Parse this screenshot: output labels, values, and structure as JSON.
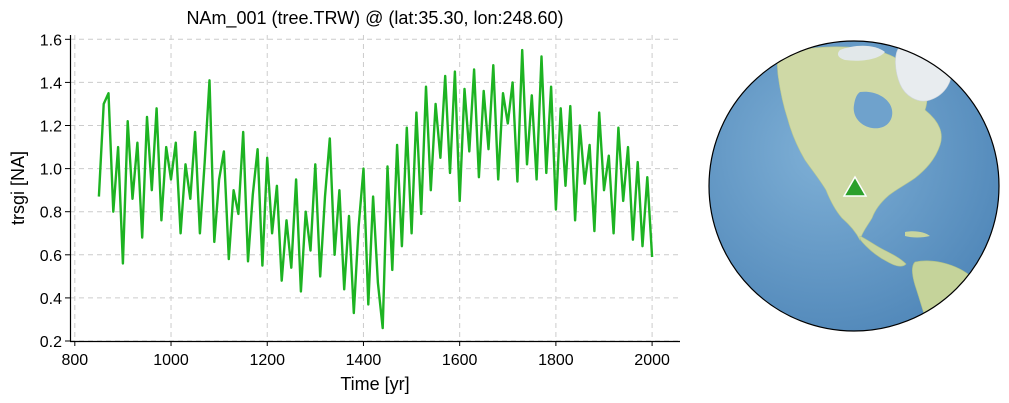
{
  "chart_data": {
    "type": "line",
    "title": "NAm_001 (tree.TRW) @ (lat:35.30, lon:248.60)",
    "xlabel": "Time [yr]",
    "ylabel": "trsgi [NA]",
    "xlim": [
      790,
      2058
    ],
    "ylim": [
      0.2,
      1.62
    ],
    "xticks": [
      800,
      1000,
      1200,
      1400,
      1600,
      1800,
      2000
    ],
    "xtick_labels": [
      "800",
      "1000",
      "1200",
      "1400",
      "1600",
      "1800",
      "2000"
    ],
    "yticks": [
      0.2,
      0.4,
      0.6,
      0.8,
      1.0,
      1.2,
      1.4,
      1.6
    ],
    "ytick_labels": [
      "0.2",
      "0.4",
      "0.6",
      "0.8",
      "1.0",
      "1.2",
      "1.4",
      "1.6"
    ],
    "grid": true,
    "series": [
      {
        "color": "#1db322",
        "x": [
          850,
          860,
          870,
          880,
          890,
          900,
          910,
          920,
          930,
          940,
          950,
          960,
          970,
          980,
          990,
          1000,
          1010,
          1020,
          1030,
          1040,
          1050,
          1060,
          1070,
          1080,
          1090,
          1100,
          1110,
          1120,
          1130,
          1140,
          1150,
          1160,
          1170,
          1180,
          1190,
          1200,
          1210,
          1220,
          1230,
          1240,
          1250,
          1260,
          1270,
          1280,
          1290,
          1300,
          1310,
          1320,
          1330,
          1340,
          1350,
          1360,
          1370,
          1380,
          1390,
          1400,
          1410,
          1420,
          1430,
          1440,
          1450,
          1460,
          1470,
          1480,
          1490,
          1500,
          1510,
          1520,
          1530,
          1540,
          1550,
          1560,
          1570,
          1580,
          1590,
          1600,
          1610,
          1620,
          1630,
          1640,
          1650,
          1660,
          1670,
          1680,
          1690,
          1700,
          1710,
          1720,
          1730,
          1740,
          1750,
          1760,
          1770,
          1780,
          1790,
          1800,
          1810,
          1820,
          1830,
          1840,
          1850,
          1860,
          1870,
          1880,
          1890,
          1900,
          1910,
          1920,
          1930,
          1940,
          1950,
          1960,
          1970,
          1980,
          1990,
          2000
        ],
        "y": [
          0.87,
          1.3,
          1.35,
          0.8,
          1.1,
          0.56,
          1.22,
          0.86,
          1.12,
          0.68,
          1.24,
          0.9,
          1.28,
          0.76,
          1.1,
          0.95,
          1.12,
          0.7,
          1.02,
          0.86,
          1.17,
          0.7,
          1.03,
          1.41,
          0.66,
          0.95,
          1.08,
          0.58,
          0.9,
          0.79,
          1.17,
          0.57,
          0.88,
          1.09,
          0.55,
          1.05,
          0.7,
          0.92,
          0.48,
          0.76,
          0.54,
          0.95,
          0.43,
          0.8,
          0.62,
          1.02,
          0.5,
          0.87,
          1.14,
          0.6,
          0.9,
          0.44,
          0.78,
          0.33,
          0.73,
          1.0,
          0.37,
          0.87,
          0.47,
          0.26,
          1.01,
          0.53,
          1.11,
          0.64,
          1.19,
          0.7,
          1.26,
          0.79,
          1.38,
          0.9,
          1.3,
          1.05,
          1.43,
          0.98,
          1.45,
          0.85,
          1.37,
          1.08,
          1.46,
          0.96,
          1.36,
          1.09,
          1.48,
          0.95,
          1.35,
          1.21,
          1.4,
          0.94,
          1.55,
          1.02,
          1.34,
          0.95,
          1.52,
          0.98,
          1.38,
          0.81,
          1.28,
          0.92,
          1.29,
          0.76,
          1.2,
          0.93,
          1.11,
          0.71,
          1.26,
          0.9,
          1.06,
          0.7,
          1.19,
          0.85,
          1.1,
          0.67,
          1.03,
          0.64,
          0.96,
          0.59
        ]
      }
    ]
  },
  "map": {
    "site_marker_color": "#2ca02c",
    "ocean_color": "#6f9fc9",
    "land_color": "#cdd9a8",
    "projection": "orthographic",
    "site_lat": 35.3,
    "site_lon": 248.6
  }
}
